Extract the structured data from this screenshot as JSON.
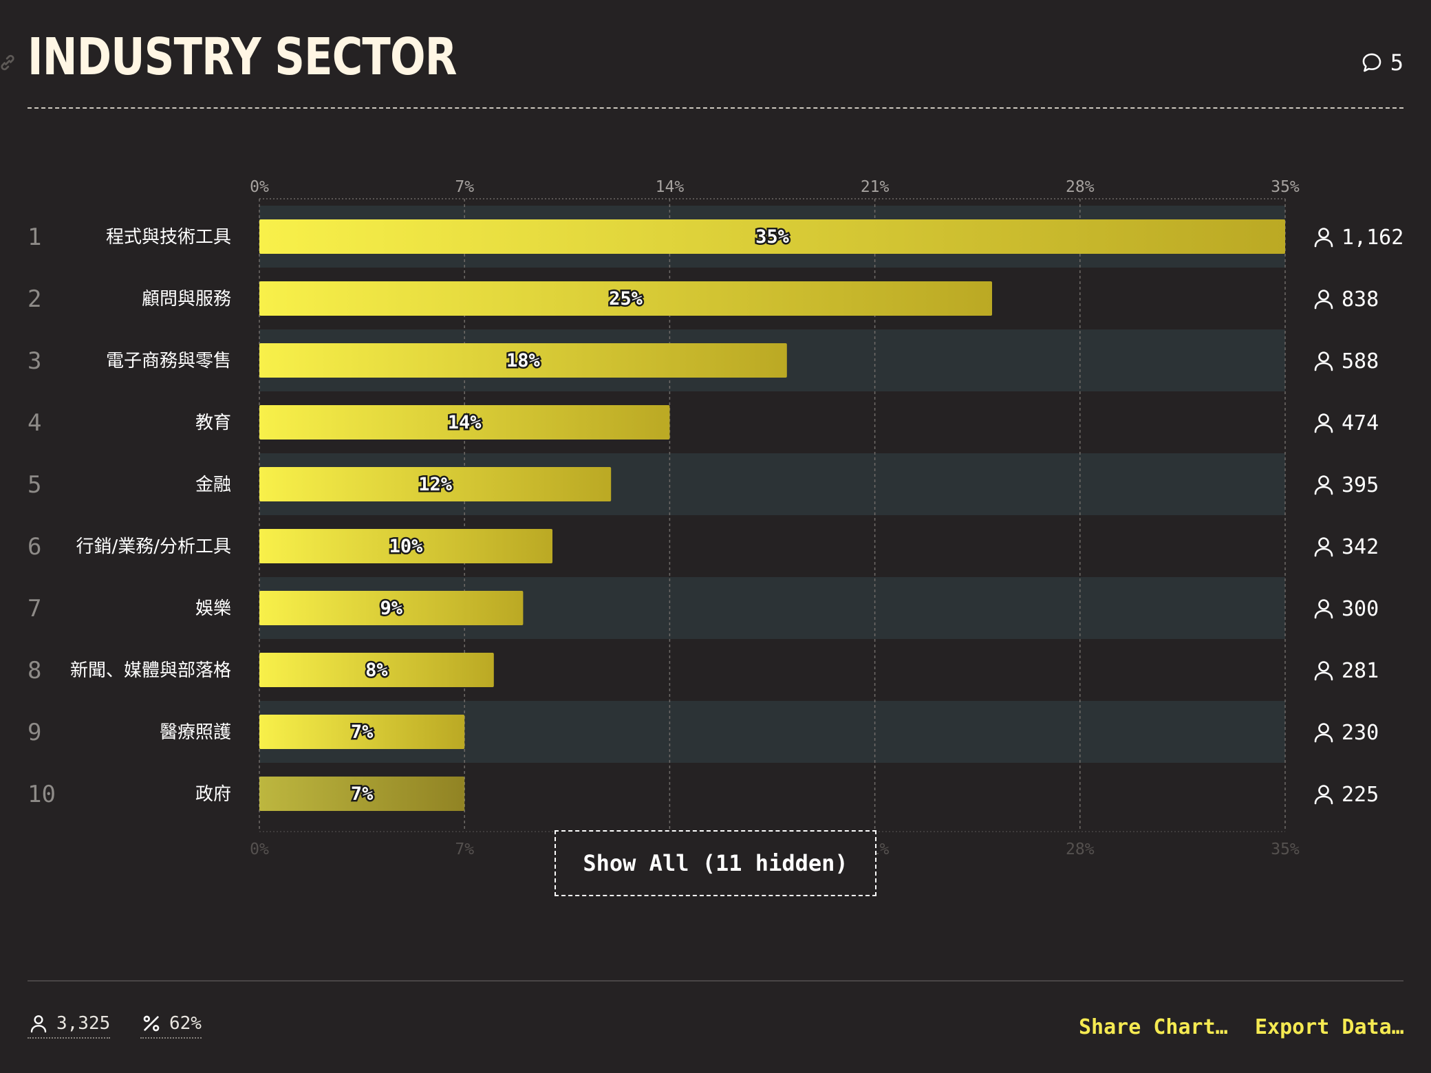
{
  "header": {
    "title": "INDUSTRY SECTOR",
    "comment_count": "5",
    "comment_icon": "speech-bubble-icon",
    "link_icon": "link-icon"
  },
  "chart_data": {
    "type": "bar",
    "orientation": "horizontal",
    "title": "INDUSTRY SECTOR",
    "ranks": [
      "1",
      "2",
      "3",
      "4",
      "5",
      "6",
      "7",
      "8",
      "9",
      "10"
    ],
    "categories": [
      "程式與技術工具",
      "顧問與服務",
      "電子商務與零售",
      "教育",
      "金融",
      "行銷/業務/分析工具",
      "娛樂",
      "新聞、媒體與部落格",
      "醫療照護",
      "政府"
    ],
    "values": [
      35,
      25,
      18,
      14,
      12,
      10,
      9,
      8,
      7,
      7
    ],
    "value_labels": [
      "35%",
      "25%",
      "18%",
      "14%",
      "12%",
      "10%",
      "9%",
      "8%",
      "7%",
      "7%"
    ],
    "counts": [
      "1,162",
      "838",
      "588",
      "474",
      "395",
      "342",
      "300",
      "281",
      "230",
      "225"
    ],
    "x_ticks": [
      0,
      7,
      14,
      21,
      28,
      35
    ],
    "x_tick_labels": [
      "0%",
      "7%",
      "14%",
      "21%",
      "28%",
      "35%"
    ],
    "xlim": [
      0,
      35
    ],
    "grid": true,
    "xlabel": "",
    "ylabel": "",
    "colors": {
      "bar_light": "#f8f04a",
      "bar_dark": "#bba924",
      "row_stripe": "#2c3336",
      "background": "#252223"
    }
  },
  "controls": {
    "show_all_label": "Show All (11 hidden)"
  },
  "footer": {
    "respondents": "3,325",
    "respondents_icon": "person-icon",
    "percent": "62%",
    "percent_icon": "percent-icon",
    "share_label": "Share Chart…",
    "export_label": "Export Data…"
  }
}
